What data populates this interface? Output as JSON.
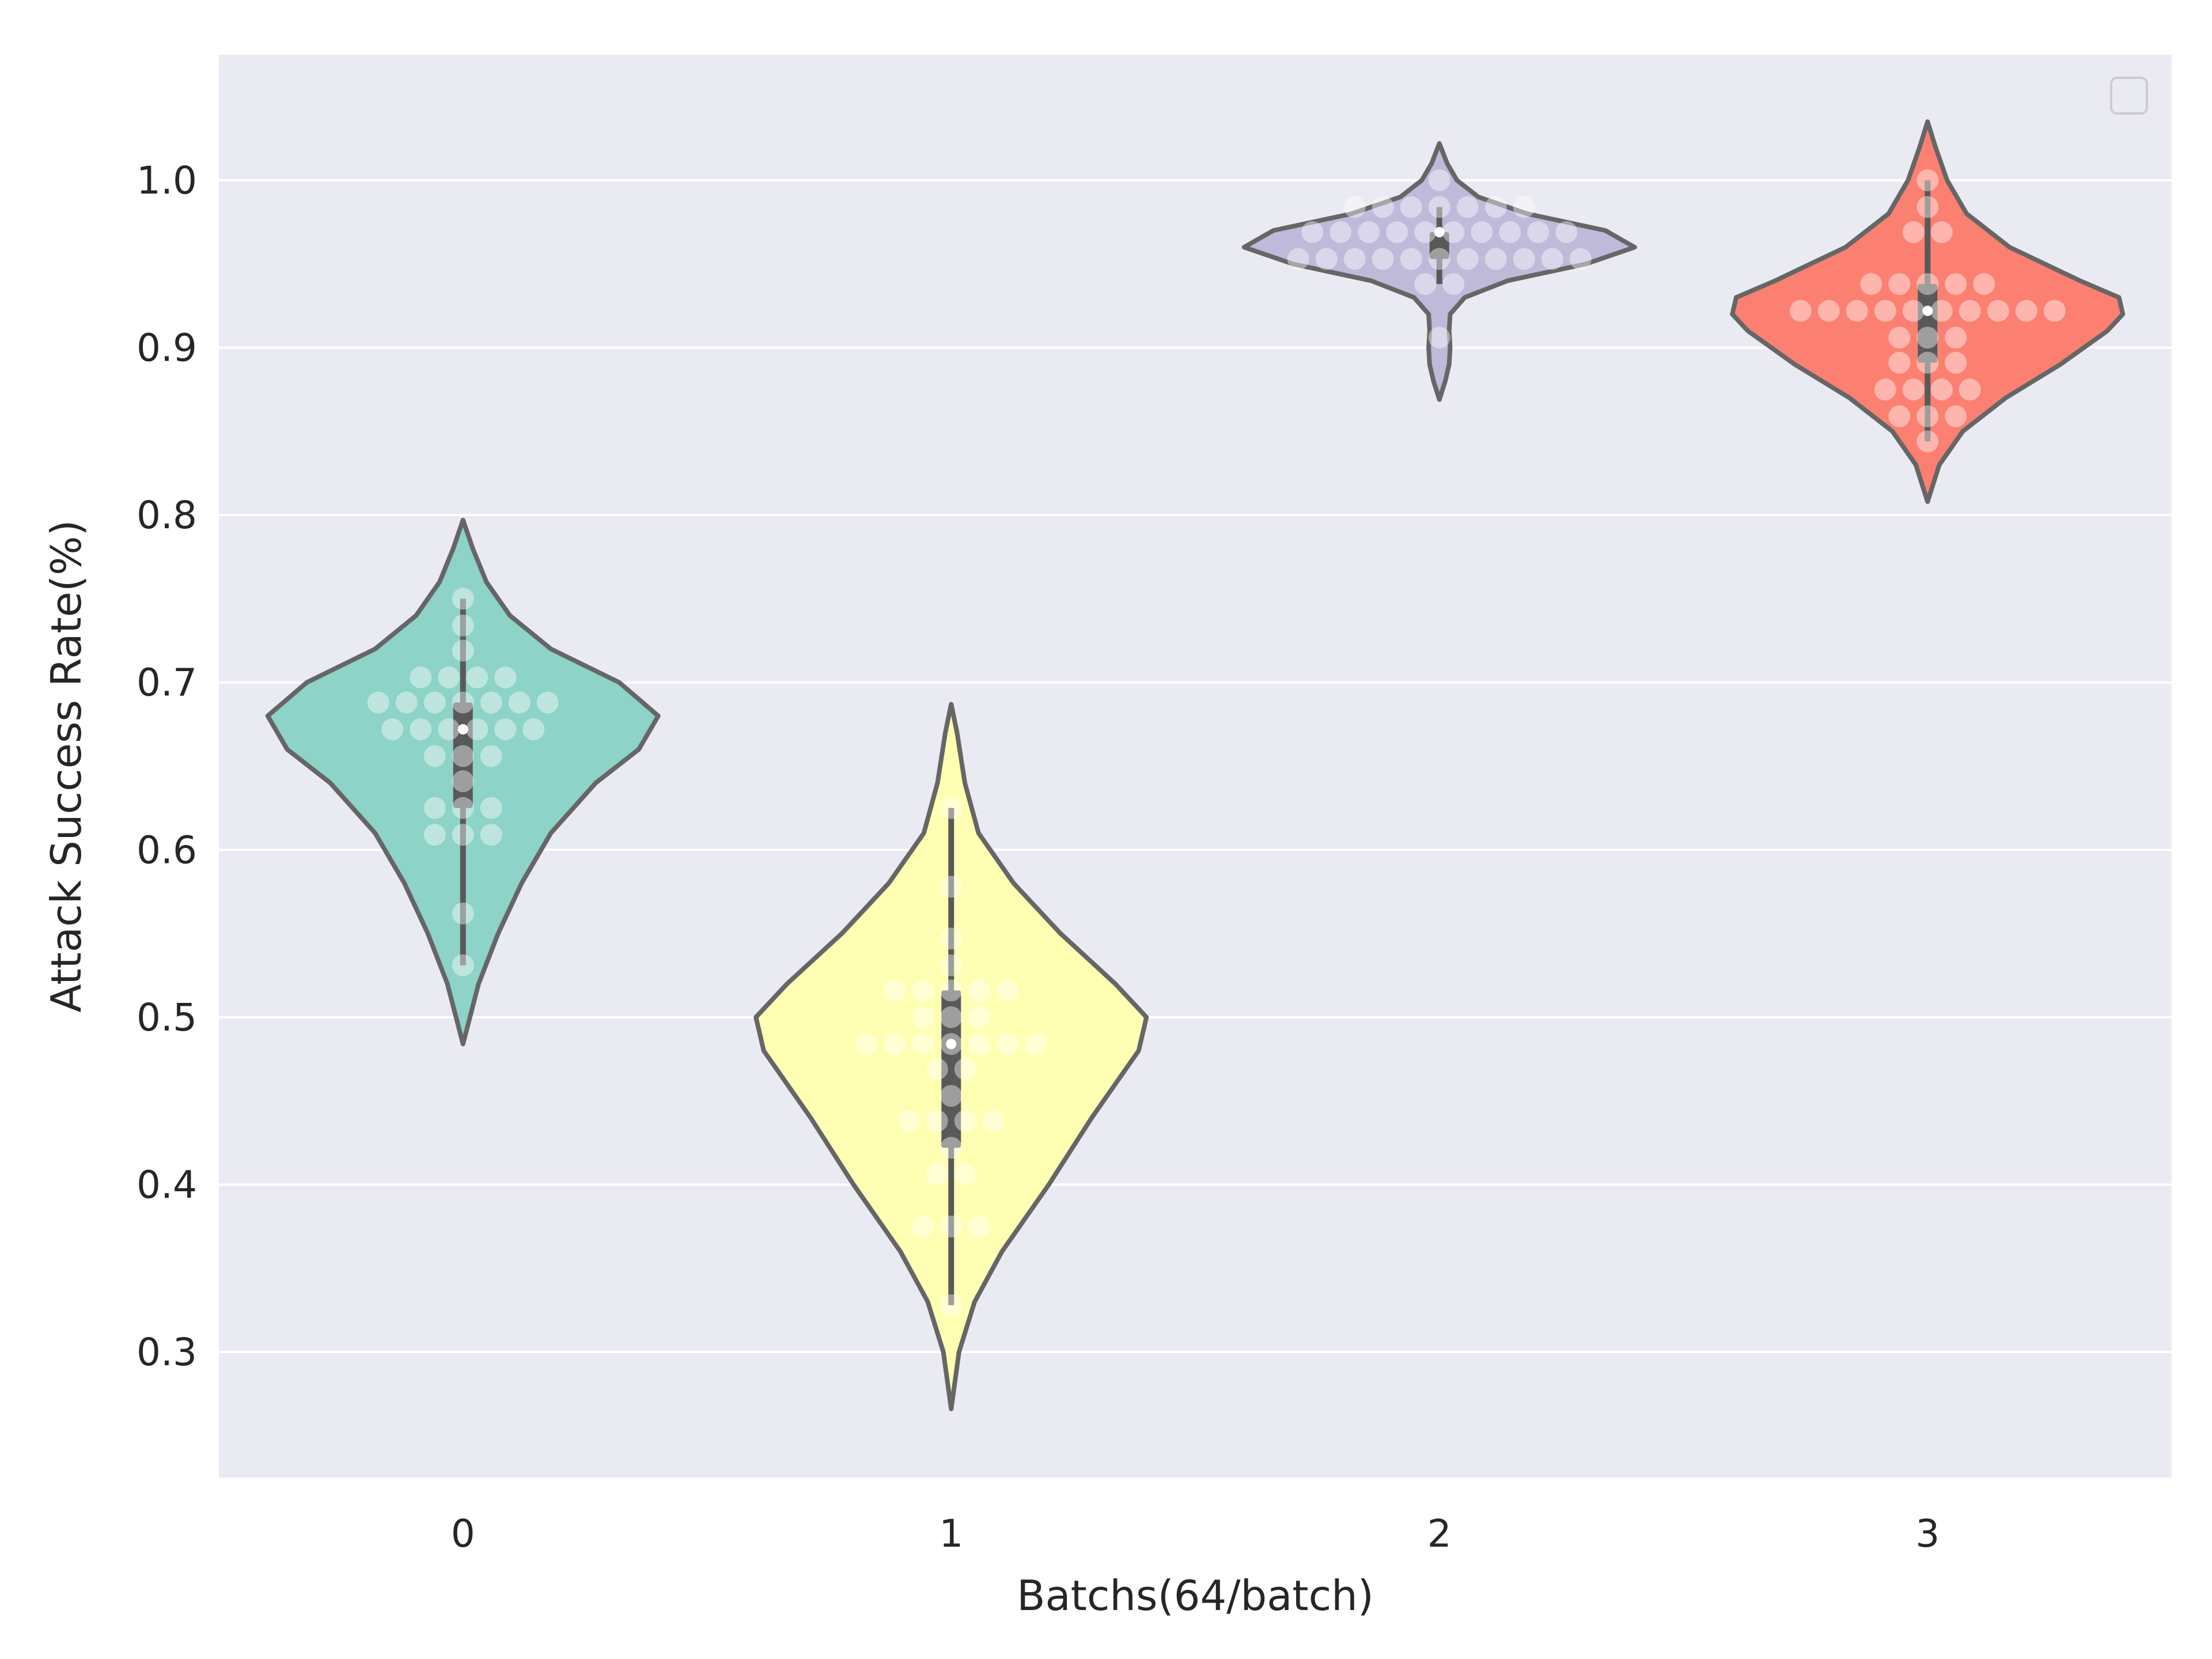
{
  "chart_data": {
    "type": "violin",
    "xlabel": "Batchs(64/batch)",
    "ylabel": "Attack Success Rate(%)",
    "ylim": [
      0.225,
      1.075
    ],
    "yticks": [
      0.3,
      0.4,
      0.5,
      0.6,
      0.7,
      0.8,
      0.9,
      1.0
    ],
    "ytick_labels": [
      "0.3",
      "0.4",
      "0.5",
      "0.6",
      "0.7",
      "0.8",
      "0.9",
      "1.0"
    ],
    "categories": [
      "0",
      "1",
      "2",
      "3"
    ],
    "grid": true,
    "legend": {
      "placement": "top-right",
      "entries": []
    },
    "colors": {
      "background": "#eaeaf2",
      "grid": "#ffffff",
      "violin_edge": "#666666",
      "box": "#595959",
      "dots": "#ffffff"
    },
    "groups": [
      {
        "category": "0",
        "color": "#8dd3c7",
        "min": 0.531,
        "q1": 0.625,
        "median": 0.672,
        "q3": 0.688,
        "max": 0.75,
        "density": [
          [
            0.484,
            0.0
          ],
          [
            0.52,
            0.08
          ],
          [
            0.55,
            0.18
          ],
          [
            0.58,
            0.3
          ],
          [
            0.61,
            0.45
          ],
          [
            0.64,
            0.68
          ],
          [
            0.66,
            0.9
          ],
          [
            0.68,
            1.0
          ],
          [
            0.7,
            0.8
          ],
          [
            0.72,
            0.45
          ],
          [
            0.74,
            0.24
          ],
          [
            0.76,
            0.12
          ],
          [
            0.78,
            0.05
          ],
          [
            0.797,
            0.0
          ]
        ],
        "points": [
          0.531,
          0.562,
          0.609,
          0.609,
          0.609,
          0.625,
          0.625,
          0.625,
          0.641,
          0.656,
          0.656,
          0.656,
          0.672,
          0.672,
          0.672,
          0.672,
          0.672,
          0.672,
          0.688,
          0.688,
          0.688,
          0.688,
          0.688,
          0.688,
          0.688,
          0.703,
          0.703,
          0.703,
          0.703,
          0.719,
          0.734,
          0.75
        ]
      },
      {
        "category": "1",
        "color": "#ffffb3",
        "min": 0.328,
        "q1": 0.422,
        "median": 0.484,
        "q3": 0.516,
        "max": 0.625,
        "density": [
          [
            0.266,
            0.0
          ],
          [
            0.3,
            0.04
          ],
          [
            0.33,
            0.12
          ],
          [
            0.36,
            0.26
          ],
          [
            0.4,
            0.5
          ],
          [
            0.44,
            0.72
          ],
          [
            0.48,
            0.96
          ],
          [
            0.5,
            1.0
          ],
          [
            0.52,
            0.84
          ],
          [
            0.55,
            0.56
          ],
          [
            0.58,
            0.32
          ],
          [
            0.61,
            0.14
          ],
          [
            0.64,
            0.07
          ],
          [
            0.67,
            0.03
          ],
          [
            0.687,
            0.0
          ]
        ],
        "points": [
          0.328,
          0.375,
          0.375,
          0.375,
          0.406,
          0.406,
          0.422,
          0.438,
          0.438,
          0.438,
          0.438,
          0.453,
          0.469,
          0.469,
          0.484,
          0.484,
          0.484,
          0.484,
          0.484,
          0.484,
          0.484,
          0.5,
          0.5,
          0.5,
          0.516,
          0.516,
          0.516,
          0.516,
          0.516,
          0.531,
          0.547,
          0.578,
          0.625
        ]
      },
      {
        "category": "2",
        "color": "#bebada",
        "min": 0.938,
        "q1": 0.953,
        "median": 0.969,
        "q3": 0.969,
        "max": 0.984,
        "density": [
          [
            0.869,
            0.0
          ],
          [
            0.88,
            0.03
          ],
          [
            0.89,
            0.05
          ],
          [
            0.9,
            0.055
          ],
          [
            0.91,
            0.05
          ],
          [
            0.92,
            0.055
          ],
          [
            0.93,
            0.13
          ],
          [
            0.94,
            0.35
          ],
          [
            0.95,
            0.75
          ],
          [
            0.96,
            1.0
          ],
          [
            0.97,
            0.85
          ],
          [
            0.98,
            0.45
          ],
          [
            0.99,
            0.2
          ],
          [
            1.0,
            0.09
          ],
          [
            1.01,
            0.04
          ],
          [
            1.022,
            0.0
          ]
        ],
        "points": [
          0.906,
          0.938,
          0.938,
          0.953,
          0.953,
          0.953,
          0.953,
          0.953,
          0.953,
          0.953,
          0.953,
          0.953,
          0.953,
          0.953,
          0.969,
          0.969,
          0.969,
          0.969,
          0.969,
          0.969,
          0.969,
          0.969,
          0.969,
          0.969,
          0.984,
          0.984,
          0.984,
          0.984,
          0.984,
          0.984,
          0.984,
          1.0
        ]
      },
      {
        "category": "3",
        "color": "#fb8072",
        "min": 0.844,
        "q1": 0.891,
        "median": 0.922,
        "q3": 0.938,
        "max": 1.0,
        "density": [
          [
            0.808,
            0.0
          ],
          [
            0.83,
            0.06
          ],
          [
            0.85,
            0.18
          ],
          [
            0.87,
            0.4
          ],
          [
            0.89,
            0.68
          ],
          [
            0.91,
            0.92
          ],
          [
            0.92,
            1.0
          ],
          [
            0.93,
            0.98
          ],
          [
            0.94,
            0.78
          ],
          [
            0.96,
            0.42
          ],
          [
            0.98,
            0.2
          ],
          [
            1.0,
            0.1
          ],
          [
            1.02,
            0.04
          ],
          [
            1.035,
            0.0
          ]
        ],
        "points": [
          0.844,
          0.859,
          0.859,
          0.859,
          0.875,
          0.875,
          0.875,
          0.875,
          0.891,
          0.891,
          0.891,
          0.906,
          0.906,
          0.906,
          0.922,
          0.922,
          0.922,
          0.922,
          0.922,
          0.922,
          0.922,
          0.922,
          0.922,
          0.922,
          0.938,
          0.938,
          0.938,
          0.938,
          0.938,
          0.969,
          0.969,
          0.984,
          1.0
        ]
      }
    ]
  }
}
